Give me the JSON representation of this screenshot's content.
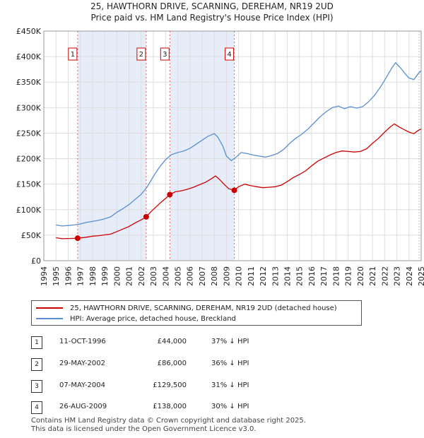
{
  "title_line1": "25, HAWTHORN DRIVE, SCARNING, DEREHAM, NR19 2UD",
  "title_line2": "Price paid vs. HM Land Registry's House Price Index (HPI)",
  "chart_data": {
    "type": "line",
    "title": "25, HAWTHORN DRIVE, SCARNING, DEREHAM, NR19 2UD — Price paid vs. HM Land Registry's House Price Index (HPI)",
    "xlim": [
      1994,
      2025
    ],
    "ylim": [
      0,
      450000
    ],
    "x_ticks": [
      "1994",
      "1995",
      "1996",
      "1997",
      "1998",
      "1999",
      "2000",
      "2001",
      "2002",
      "2003",
      "2004",
      "2005",
      "2006",
      "2007",
      "2008",
      "2009",
      "2010",
      "2011",
      "2012",
      "2013",
      "2014",
      "2015",
      "2016",
      "2017",
      "2018",
      "2019",
      "2020",
      "2021",
      "2022",
      "2023",
      "2024",
      "2025"
    ],
    "y_ticks": [
      {
        "value": 0,
        "label": "£0"
      },
      {
        "value": 50000,
        "label": "£50K"
      },
      {
        "value": 100000,
        "label": "£100K"
      },
      {
        "value": 150000,
        "label": "£150K"
      },
      {
        "value": 200000,
        "label": "£200K"
      },
      {
        "value": 250000,
        "label": "£250K"
      },
      {
        "value": 300000,
        "label": "£300K"
      },
      {
        "value": 350000,
        "label": "£350K"
      },
      {
        "value": 400000,
        "label": "£400K"
      },
      {
        "value": 450000,
        "label": "£450K"
      }
    ],
    "shaded_spans": [
      [
        1996.78,
        2002.41
      ],
      [
        2004.35,
        2009.65
      ]
    ],
    "series": [
      {
        "name": "25, HAWTHORN DRIVE, SCARNING, DEREHAM, NR19 2UD (detached house)",
        "color": "#cc0000",
        "points": [
          [
            1995.0,
            45000
          ],
          [
            1995.5,
            43000
          ],
          [
            1996.0,
            43500
          ],
          [
            1996.5,
            43800
          ],
          [
            1996.78,
            44000
          ],
          [
            1997.5,
            46000
          ],
          [
            1998.0,
            48000
          ],
          [
            1998.5,
            49000
          ],
          [
            1999.0,
            50500
          ],
          [
            1999.5,
            52000
          ],
          [
            2000.0,
            57000
          ],
          [
            2000.5,
            62000
          ],
          [
            2001.0,
            67000
          ],
          [
            2001.5,
            74000
          ],
          [
            2002.0,
            80000
          ],
          [
            2002.41,
            86000
          ],
          [
            2002.8,
            96000
          ],
          [
            2003.2,
            105000
          ],
          [
            2003.6,
            114000
          ],
          [
            2004.0,
            122000
          ],
          [
            2004.35,
            129500
          ],
          [
            2004.8,
            135000
          ],
          [
            2005.3,
            137000
          ],
          [
            2005.8,
            140000
          ],
          [
            2006.3,
            144000
          ],
          [
            2006.8,
            149000
          ],
          [
            2007.3,
            154000
          ],
          [
            2007.8,
            161000
          ],
          [
            2008.1,
            166000
          ],
          [
            2008.4,
            160000
          ],
          [
            2008.8,
            150000
          ],
          [
            2009.2,
            141000
          ],
          [
            2009.65,
            138000
          ],
          [
            2010.0,
            145000
          ],
          [
            2010.5,
            150000
          ],
          [
            2011.0,
            147000
          ],
          [
            2011.5,
            145000
          ],
          [
            2012.0,
            143000
          ],
          [
            2012.5,
            144000
          ],
          [
            2013.0,
            145000
          ],
          [
            2013.5,
            148000
          ],
          [
            2014.0,
            155000
          ],
          [
            2014.5,
            163000
          ],
          [
            2015.0,
            169000
          ],
          [
            2015.5,
            176000
          ],
          [
            2016.0,
            186000
          ],
          [
            2016.5,
            195000
          ],
          [
            2017.0,
            201000
          ],
          [
            2017.5,
            207000
          ],
          [
            2018.0,
            212000
          ],
          [
            2018.5,
            215000
          ],
          [
            2019.0,
            214000
          ],
          [
            2019.5,
            213000
          ],
          [
            2020.0,
            214000
          ],
          [
            2020.5,
            219000
          ],
          [
            2021.0,
            230000
          ],
          [
            2021.5,
            240000
          ],
          [
            2022.0,
            252000
          ],
          [
            2022.5,
            263000
          ],
          [
            2022.8,
            268000
          ],
          [
            2023.2,
            262000
          ],
          [
            2023.6,
            257000
          ],
          [
            2024.0,
            252000
          ],
          [
            2024.4,
            249000
          ],
          [
            2024.8,
            256000
          ],
          [
            2025.0,
            258000
          ]
        ]
      },
      {
        "name": "HPI: Average price, detached house, Breckland",
        "color": "#5a8ed0",
        "points": [
          [
            1995.0,
            70000
          ],
          [
            1995.5,
            68000
          ],
          [
            1996.0,
            69000
          ],
          [
            1996.5,
            70000
          ],
          [
            1997.0,
            72000
          ],
          [
            1997.5,
            75000
          ],
          [
            1998.0,
            77000
          ],
          [
            1998.5,
            79000
          ],
          [
            1999.0,
            82000
          ],
          [
            1999.5,
            86000
          ],
          [
            2000.0,
            95000
          ],
          [
            2000.5,
            102000
          ],
          [
            2001.0,
            110000
          ],
          [
            2001.5,
            120000
          ],
          [
            2002.0,
            130000
          ],
          [
            2002.5,
            145000
          ],
          [
            2003.0,
            165000
          ],
          [
            2003.5,
            183000
          ],
          [
            2004.0,
            198000
          ],
          [
            2004.5,
            208000
          ],
          [
            2005.0,
            212000
          ],
          [
            2005.5,
            215000
          ],
          [
            2006.0,
            220000
          ],
          [
            2006.5,
            228000
          ],
          [
            2007.0,
            236000
          ],
          [
            2007.5,
            244000
          ],
          [
            2008.0,
            249000
          ],
          [
            2008.3,
            242000
          ],
          [
            2008.7,
            225000
          ],
          [
            2009.0,
            205000
          ],
          [
            2009.4,
            196000
          ],
          [
            2009.8,
            203000
          ],
          [
            2010.2,
            212000
          ],
          [
            2010.7,
            210000
          ],
          [
            2011.2,
            207000
          ],
          [
            2011.7,
            205000
          ],
          [
            2012.2,
            203000
          ],
          [
            2012.7,
            206000
          ],
          [
            2013.2,
            210000
          ],
          [
            2013.7,
            218000
          ],
          [
            2014.2,
            230000
          ],
          [
            2014.7,
            240000
          ],
          [
            2015.2,
            248000
          ],
          [
            2015.7,
            258000
          ],
          [
            2016.2,
            270000
          ],
          [
            2016.7,
            282000
          ],
          [
            2017.2,
            292000
          ],
          [
            2017.7,
            300000
          ],
          [
            2018.2,
            303000
          ],
          [
            2018.7,
            298000
          ],
          [
            2019.2,
            302000
          ],
          [
            2019.7,
            299000
          ],
          [
            2020.2,
            302000
          ],
          [
            2020.7,
            312000
          ],
          [
            2021.2,
            325000
          ],
          [
            2021.7,
            342000
          ],
          [
            2022.2,
            362000
          ],
          [
            2022.6,
            378000
          ],
          [
            2022.9,
            388000
          ],
          [
            2023.3,
            378000
          ],
          [
            2023.7,
            366000
          ],
          [
            2024.0,
            358000
          ],
          [
            2024.4,
            355000
          ],
          [
            2024.8,
            368000
          ],
          [
            2025.0,
            372000
          ]
        ]
      }
    ],
    "sales": [
      {
        "label": "1",
        "x": 1996.78,
        "value": 44000
      },
      {
        "label": "2",
        "x": 2002.41,
        "value": 86000
      },
      {
        "label": "3",
        "x": 2004.35,
        "value": 129500
      },
      {
        "label": "4",
        "x": 2009.65,
        "value": 138000
      }
    ]
  },
  "legend": {
    "red_label": "25, HAWTHORN DRIVE, SCARNING, DEREHAM, NR19 2UD (detached house)",
    "blue_label": "HPI: Average price, detached house, Breckland"
  },
  "transactions": [
    {
      "num": "1",
      "date": "11-OCT-1996",
      "price": "£44,000",
      "hpi": "37% ↓ HPI"
    },
    {
      "num": "2",
      "date": "29-MAY-2002",
      "price": "£86,000",
      "hpi": "36% ↓ HPI"
    },
    {
      "num": "3",
      "date": "07-MAY-2004",
      "price": "£129,500",
      "hpi": "31% ↓ HPI"
    },
    {
      "num": "4",
      "date": "26-AUG-2009",
      "price": "£138,000",
      "hpi": "30% ↓ HPI"
    }
  ],
  "footer": {
    "line1": "Contains HM Land Registry data © Crown copyright and database right 2025.",
    "line2": "This data is licensed under the Open Government Licence v3.0."
  },
  "colors": {
    "red": "#cc0000",
    "blue": "#5a8ed0",
    "shade": "#dce6f7",
    "grid": "#dddddd"
  }
}
